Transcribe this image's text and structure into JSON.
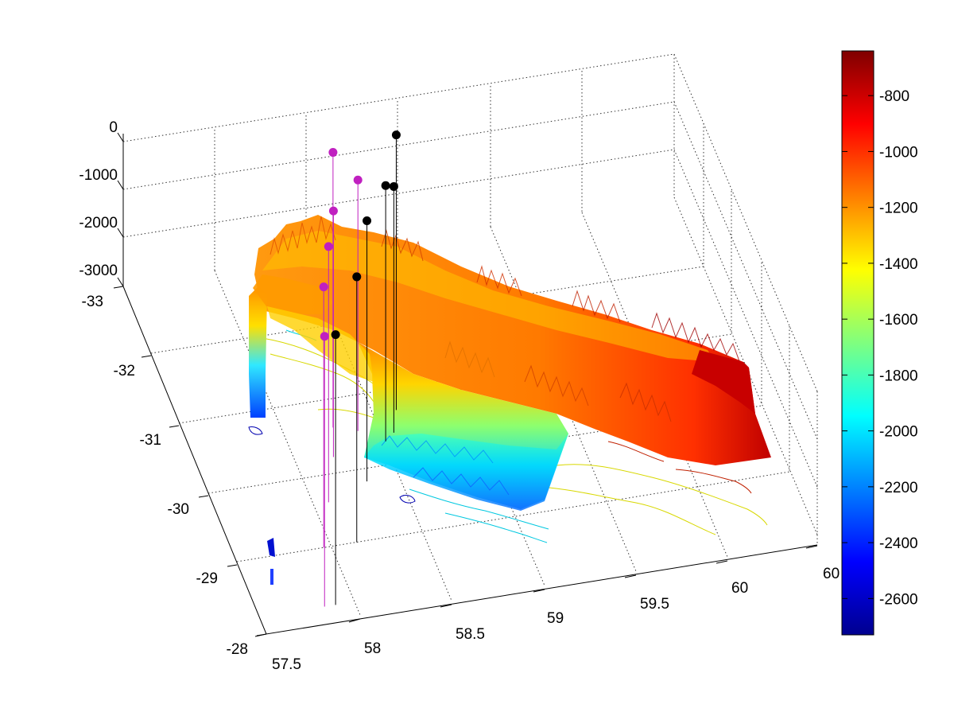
{
  "chart_data": {
    "type": "surface",
    "title": "",
    "xlabel": "",
    "ylabel": "",
    "zlabel": "",
    "xlim": [
      57.5,
      60
    ],
    "ylim": [
      -33,
      -28
    ],
    "zlim": [
      -3000,
      0
    ],
    "x_ticks": [
      "57.5",
      "58",
      "58.5",
      "59",
      "59.5",
      "60",
      "60"
    ],
    "y_ticks": [
      "-33",
      "-32",
      "-31",
      "-30",
      "-29",
      "-28"
    ],
    "z_ticks": [
      "0",
      "-1000",
      "-2000",
      "-3000"
    ],
    "grid": true,
    "colormap": "jet",
    "colorbar": {
      "position": "right",
      "range": [
        -2730,
        -640
      ],
      "ticks": [
        "-800",
        "-1000",
        "-1200",
        "-1400",
        "-1600",
        "-1800",
        "-2000",
        "-2200",
        "-2400",
        "-2600"
      ],
      "tick_values": [
        -800,
        -1000,
        -1200,
        -1400,
        -1600,
        -1800,
        -2000,
        -2200,
        -2400,
        -2600
      ]
    },
    "surface_profile": [
      {
        "x": 57.55,
        "depth_west_edge": -1250,
        "depth_shelf_edge": -1400
      },
      {
        "x": 58.0,
        "depth_west_edge": -1300,
        "depth_shelf_edge": -2350
      },
      {
        "x": 58.5,
        "depth_west_edge": -1250,
        "depth_shelf_edge": -2250
      },
      {
        "x": 59.0,
        "depth_west_edge": -1100,
        "depth_shelf_edge": -1900
      },
      {
        "x": 59.5,
        "depth_west_edge": -950,
        "depth_shelf_edge": -1500
      },
      {
        "x": 60.0,
        "depth_west_edge": -750,
        "depth_shelf_edge": -1300
      }
    ],
    "contour_levels": [
      -2600,
      -2000,
      -1500,
      -900
    ],
    "series": [
      {
        "marker": "magenta",
        "points": [
          {
            "x": 58.05,
            "y": -30.2,
            "z": -400
          },
          {
            "x": 58.15,
            "y": -31.0,
            "z": -600
          },
          {
            "x": 58.25,
            "y": -31.6,
            "z": -700
          },
          {
            "x": 58.35,
            "y": -32.2,
            "z": -900
          },
          {
            "x": 58.4,
            "y": -32.6,
            "z": -300
          },
          {
            "x": 58.5,
            "y": -32.5,
            "z": -800
          }
        ]
      },
      {
        "marker": "black",
        "points": [
          {
            "x": 58.1,
            "y": -30.2,
            "z": -400
          },
          {
            "x": 58.3,
            "y": -31.0,
            "z": -500
          },
          {
            "x": 58.45,
            "y": -31.8,
            "z": -600
          },
          {
            "x": 58.6,
            "y": -32.3,
            "z": -700
          },
          {
            "x": 58.7,
            "y": -32.7,
            "z": -300
          },
          {
            "x": 58.65,
            "y": -32.4,
            "z": -900
          }
        ]
      }
    ],
    "colors": {
      "magenta_marker": "#c020c0",
      "black_marker": "#000000",
      "grid": "#333333",
      "axis": "#000000"
    }
  }
}
